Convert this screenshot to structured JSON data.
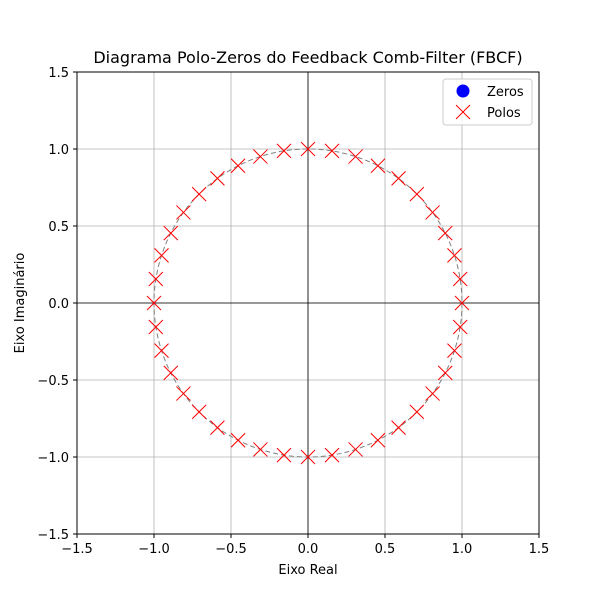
{
  "chart_data": {
    "type": "scatter",
    "title": "Diagrama Polo-Zeros do Feedback Comb-Filter (FBCF)",
    "xlabel": "Eixo Real",
    "ylabel": "Eixo Imaginário",
    "xlim": [
      -1.5,
      1.5
    ],
    "ylim": [
      -1.5,
      1.5
    ],
    "xticks": [
      -1.5,
      -1.0,
      -0.5,
      0.0,
      0.5,
      1.0,
      1.5
    ],
    "yticks": [
      -1.5,
      -1.0,
      -0.5,
      0.0,
      0.5,
      1.0,
      1.5
    ],
    "xtick_labels": [
      "−1.5",
      "−1.0",
      "−0.5",
      "0.0",
      "0.5",
      "1.0",
      "1.5"
    ],
    "ytick_labels": [
      "−1.5",
      "−1.0",
      "−0.5",
      "0.0",
      "0.5",
      "1.0",
      "1.5"
    ],
    "grid": true,
    "unit_circle": true,
    "legend_position": "top-right",
    "series": [
      {
        "name": "Zeros",
        "marker": "circle",
        "color": "#0000ff",
        "points": []
      },
      {
        "name": "Polos",
        "marker": "x",
        "color": "#ff0000",
        "points": [
          [
            1.0,
            0.0
          ],
          [
            0.988,
            0.156
          ],
          [
            0.951,
            0.309
          ],
          [
            0.891,
            0.454
          ],
          [
            0.809,
            0.588
          ],
          [
            0.707,
            0.707
          ],
          [
            0.588,
            0.809
          ],
          [
            0.454,
            0.891
          ],
          [
            0.309,
            0.951
          ],
          [
            0.156,
            0.988
          ],
          [
            0.0,
            1.0
          ],
          [
            -0.156,
            0.988
          ],
          [
            -0.309,
            0.951
          ],
          [
            -0.454,
            0.891
          ],
          [
            -0.588,
            0.809
          ],
          [
            -0.707,
            0.707
          ],
          [
            -0.809,
            0.588
          ],
          [
            -0.891,
            0.454
          ],
          [
            -0.951,
            0.309
          ],
          [
            -0.988,
            0.156
          ],
          [
            -1.0,
            0.0
          ],
          [
            -0.988,
            -0.156
          ],
          [
            -0.951,
            -0.309
          ],
          [
            -0.891,
            -0.454
          ],
          [
            -0.809,
            -0.588
          ],
          [
            -0.707,
            -0.707
          ],
          [
            -0.588,
            -0.809
          ],
          [
            -0.454,
            -0.891
          ],
          [
            -0.309,
            -0.951
          ],
          [
            -0.156,
            -0.988
          ],
          [
            0.0,
            -1.0
          ],
          [
            0.156,
            -0.988
          ],
          [
            0.309,
            -0.951
          ],
          [
            0.454,
            -0.891
          ],
          [
            0.588,
            -0.809
          ],
          [
            0.707,
            -0.707
          ],
          [
            0.809,
            -0.588
          ],
          [
            0.891,
            -0.454
          ],
          [
            0.951,
            -0.309
          ],
          [
            0.988,
            -0.156
          ]
        ]
      }
    ]
  }
}
